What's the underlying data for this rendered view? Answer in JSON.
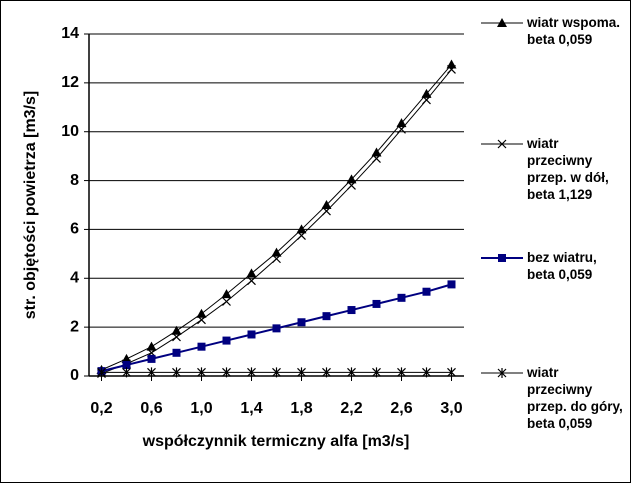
{
  "chart_data": {
    "type": "line",
    "xlabel": "współczynnik termiczny alfa [m3/s]",
    "ylabel": "str. objętości powietrza [m3/s]",
    "x": [
      0.2,
      0.4,
      0.6,
      0.8,
      1.0,
      1.2,
      1.4,
      1.6,
      1.8,
      2.0,
      2.2,
      2.4,
      2.6,
      2.8,
      3.0
    ],
    "series": [
      {
        "name": "wiatr wspoma. beta 0,059",
        "color": "#000000",
        "marker": "triangle",
        "values": [
          0.25,
          0.7,
          1.2,
          1.85,
          2.55,
          3.35,
          4.2,
          5.05,
          6.0,
          7.0,
          8.05,
          9.15,
          10.35,
          11.55,
          12.75
        ]
      },
      {
        "name": "wiatr przeciwny przep. w dół, beta 1,129",
        "color": "#000000",
        "marker": "x",
        "values": [
          0.1,
          0.5,
          0.95,
          1.6,
          2.3,
          3.05,
          3.9,
          4.8,
          5.75,
          6.75,
          7.8,
          8.9,
          10.1,
          11.3,
          12.55
        ]
      },
      {
        "name": "bez wiatru, beta 0,059",
        "color": "#000080",
        "marker": "square",
        "values": [
          0.2,
          0.45,
          0.7,
          0.95,
          1.2,
          1.45,
          1.7,
          1.95,
          2.2,
          2.45,
          2.7,
          2.95,
          3.2,
          3.45,
          3.75
        ]
      },
      {
        "name": "wiatr przeciwny przep. do góry, beta 0,059",
        "color": "#000000",
        "marker": "asterisk",
        "values": [
          0.15,
          0.15,
          0.15,
          0.15,
          0.15,
          0.15,
          0.15,
          0.15,
          0.15,
          0.15,
          0.15,
          0.15,
          0.15,
          0.15,
          0.15
        ]
      }
    ],
    "xlim": [
      0.1,
      3.1
    ],
    "ylim": [
      0,
      14
    ],
    "xticks": [
      {
        "value": 0.2,
        "label": "0,2"
      },
      {
        "value": 0.6,
        "label": "0,6"
      },
      {
        "value": 1.0,
        "label": "1,0"
      },
      {
        "value": 1.4,
        "label": "1,4"
      },
      {
        "value": 1.8,
        "label": "1,8"
      },
      {
        "value": 2.2,
        "label": "2,2"
      },
      {
        "value": 2.6,
        "label": "2,6"
      },
      {
        "value": 3.0,
        "label": "3,0"
      }
    ],
    "yticks": [
      0,
      2,
      4,
      6,
      8,
      10,
      12,
      14
    ],
    "grid": true,
    "legend": "right"
  }
}
